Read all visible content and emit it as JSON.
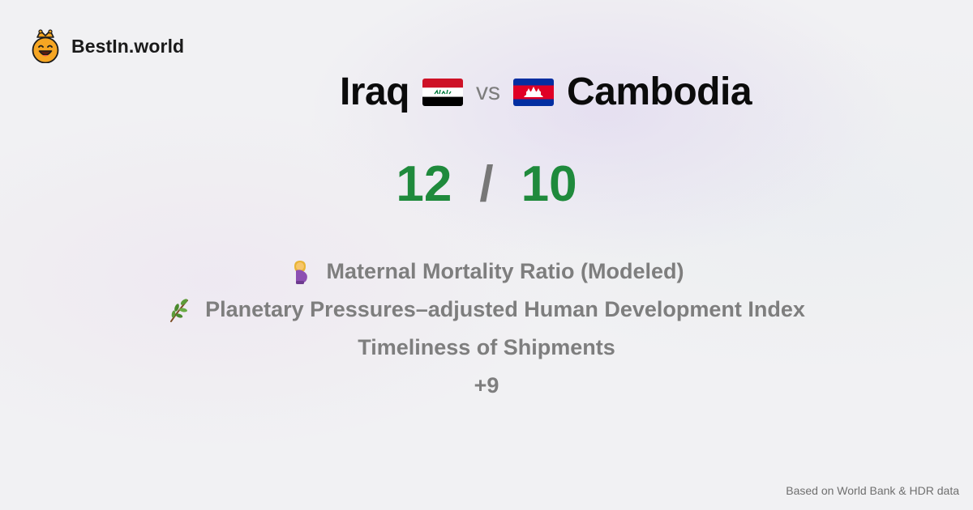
{
  "brand": {
    "name": "BestIn.world",
    "logo_icon": "crown-smiley-icon"
  },
  "comparison": {
    "left_country": "Iraq",
    "left_flag_icon": "iraq-flag-icon",
    "vs_label": "vs",
    "right_country": "Cambodia",
    "right_flag_icon": "cambodia-flag-icon"
  },
  "scores": {
    "left": "12",
    "separator": "/",
    "right": "10"
  },
  "metrics": [
    {
      "icon": "pregnant-woman-icon",
      "label": "Maternal Mortality Ratio (Modeled)"
    },
    {
      "icon": "herb-branch-icon",
      "label": "Planetary Pressures–adjusted Human Development Index"
    },
    {
      "icon": "",
      "label": "Timeliness of Shipments"
    }
  ],
  "more_label": "+9",
  "footer": {
    "source": "Based on World Bank & HDR data"
  },
  "colors": {
    "score_green": "#1f8a3c",
    "muted_text": "#7e7e7e",
    "logo_orange": "#f6a623"
  }
}
